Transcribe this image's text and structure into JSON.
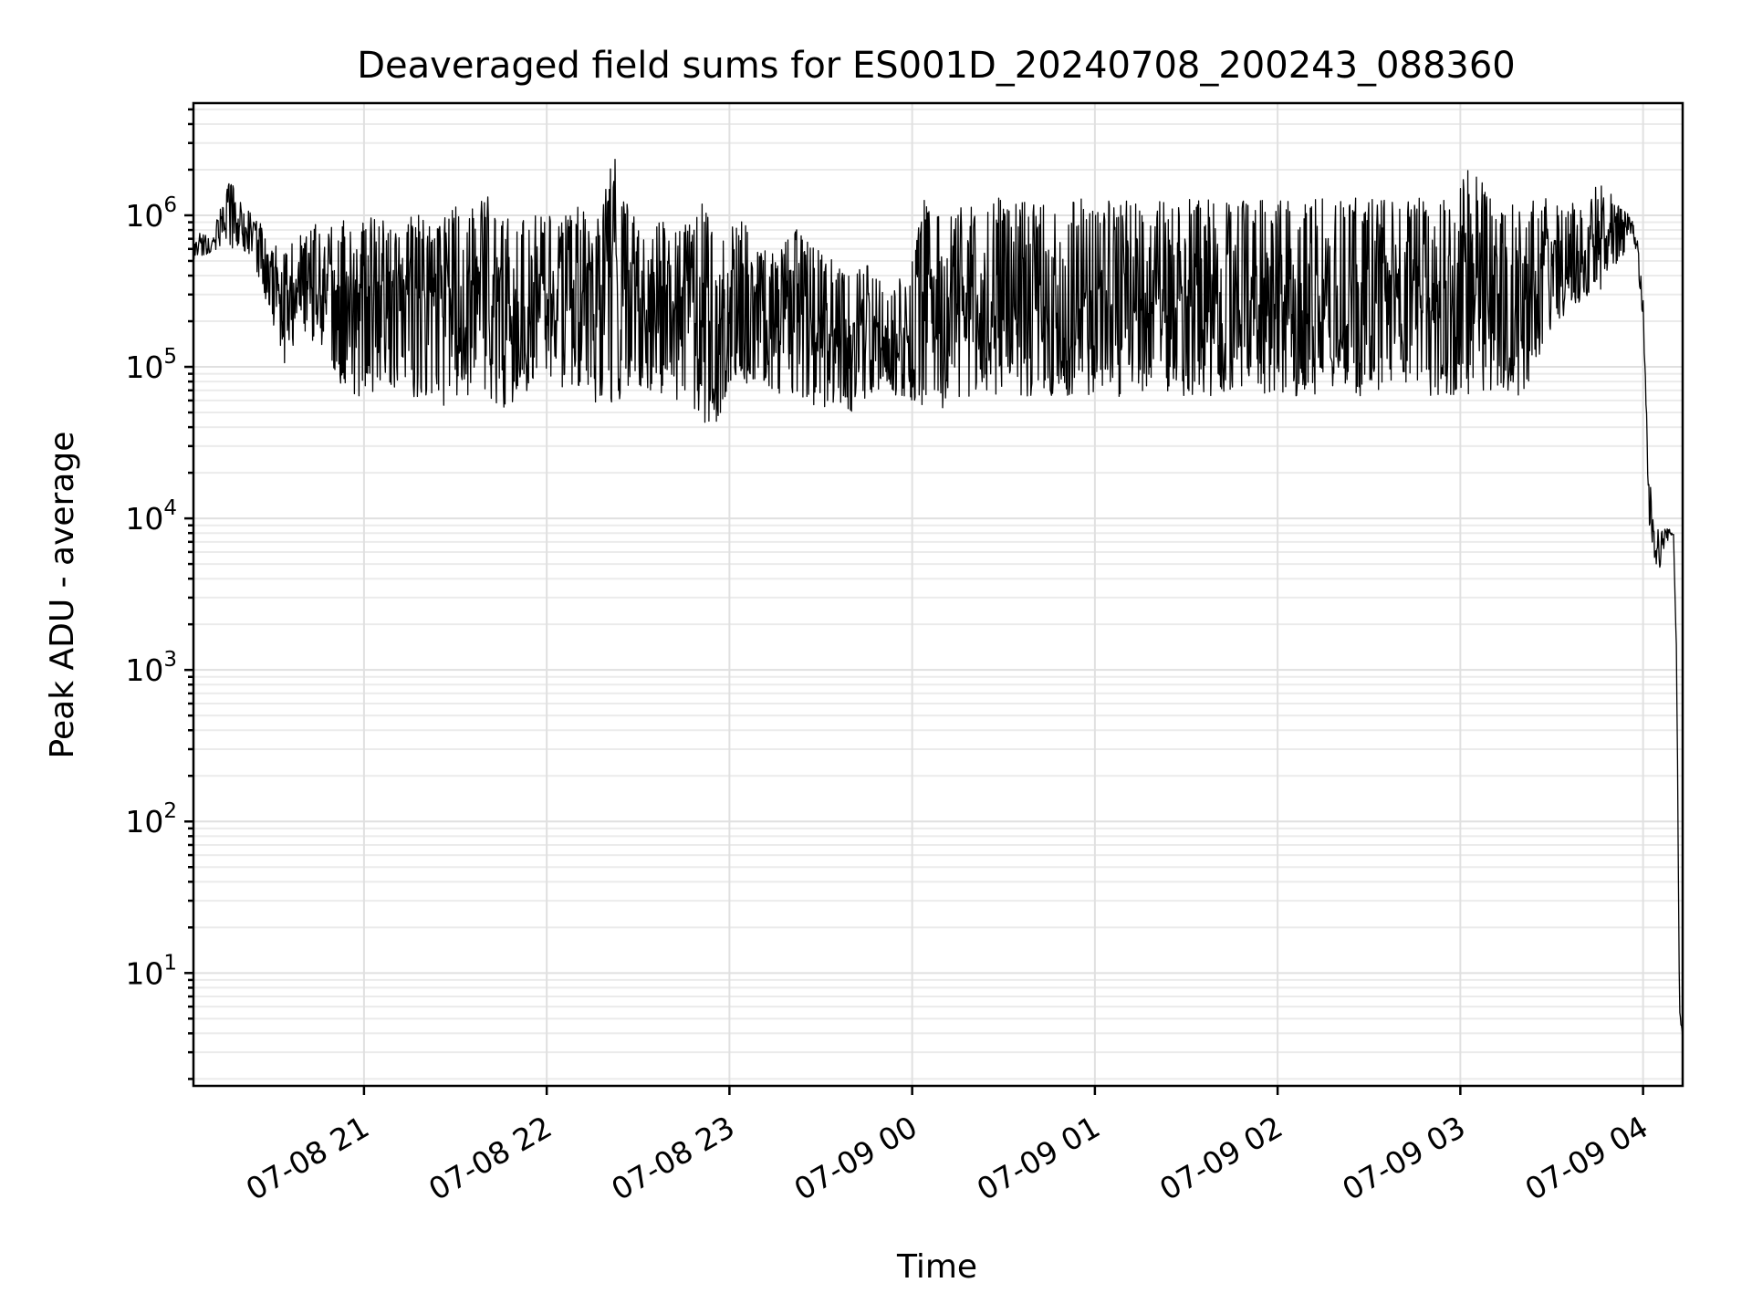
{
  "chart_data": {
    "type": "line",
    "title": "Deaveraged field sums for ES001D_20240708_200243_088360",
    "xlabel": "Time",
    "ylabel": "Peak ADU - average",
    "y_scale": "log",
    "x_range": [
      "07-08 20:04",
      "07-09 04:13"
    ],
    "y_range": [
      1.8,
      5500000
    ],
    "grid": true,
    "legend": "none",
    "line_color": "#000000",
    "x_ticks": [
      "07-08 21",
      "07-08 22",
      "07-08 23",
      "07-09 00",
      "07-09 01",
      "07-09 02",
      "07-09 03",
      "07-09 04"
    ],
    "y_ticks": [
      {
        "base": "10",
        "exp": "1",
        "value": 10
      },
      {
        "base": "10",
        "exp": "2",
        "value": 100
      },
      {
        "base": "10",
        "exp": "3",
        "value": 1000
      },
      {
        "base": "10",
        "exp": "4",
        "value": 10000
      },
      {
        "base": "10",
        "exp": "5",
        "value": 100000
      },
      {
        "base": "10",
        "exp": "6",
        "value": 1000000
      }
    ],
    "series": [
      {
        "x": [
          "07-08 20:04",
          "07-08 20:10",
          "07-08 20:16",
          "07-08 20:22",
          "07-08 20:28",
          "07-08 20:34",
          "07-08 20:40",
          "07-08 20:46",
          "07-08 20:52",
          "07-08 20:58",
          "07-08 21:04",
          "07-08 21:10",
          "07-08 21:16",
          "07-08 21:22",
          "07-08 21:28",
          "07-08 21:34",
          "07-08 21:40",
          "07-08 21:46",
          "07-08 21:52",
          "07-08 21:58",
          "07-08 22:04",
          "07-08 22:10",
          "07-08 22:16",
          "07-08 22:22",
          "07-08 22:28",
          "07-08 22:34",
          "07-08 22:40",
          "07-08 22:46",
          "07-08 22:52",
          "07-08 22:58",
          "07-08 23:04",
          "07-08 23:10",
          "07-08 23:16",
          "07-08 23:22",
          "07-08 23:28",
          "07-08 23:34",
          "07-08 23:40",
          "07-08 23:46",
          "07-08 23:52",
          "07-08 23:58",
          "07-09 00:04",
          "07-09 00:10",
          "07-09 00:16",
          "07-09 00:22",
          "07-09 00:28",
          "07-09 00:34",
          "07-09 00:40",
          "07-09 00:46",
          "07-09 00:52",
          "07-09 00:58",
          "07-09 01:04",
          "07-09 01:10",
          "07-09 01:16",
          "07-09 01:22",
          "07-09 01:28",
          "07-09 01:34",
          "07-09 01:40",
          "07-09 01:46",
          "07-09 01:52",
          "07-09 01:58",
          "07-09 02:04",
          "07-09 02:10",
          "07-09 02:16",
          "07-09 02:22",
          "07-09 02:28",
          "07-09 02:34",
          "07-09 02:40",
          "07-09 02:46",
          "07-09 02:52",
          "07-09 02:58",
          "07-09 03:04",
          "07-09 03:10",
          "07-09 03:16",
          "07-09 03:22",
          "07-09 03:28",
          "07-09 03:34",
          "07-09 03:40",
          "07-09 03:46",
          "07-09 03:52",
          "07-09 03:56",
          "07-09 03:58",
          "07-09 04:00",
          "07-09 04:02",
          "07-09 04:05",
          "07-09 04:07",
          "07-09 04:09",
          "07-09 04:10",
          "07-09 04:11",
          "07-09 04:12",
          "07-09 04:13"
        ],
        "y_high": [
          800000,
          750000,
          1700000,
          1100000,
          800000,
          700000,
          750000,
          1000000,
          950000,
          1100000,
          1000000,
          900000,
          1100000,
          850000,
          1300000,
          1100000,
          1400000,
          1000000,
          950000,
          1100000,
          900000,
          1200000,
          900000,
          2700000,
          1000000,
          900000,
          1000000,
          900000,
          1300000,
          800000,
          950000,
          700000,
          600000,
          900000,
          650000,
          500000,
          400000,
          500000,
          300000,
          450000,
          1300000,
          1200000,
          1300000,
          1300000,
          1300000,
          1300000,
          1250000,
          1250000,
          1300000,
          1300000,
          1250000,
          1300000,
          1300000,
          1300000,
          1300000,
          1300000,
          1250000,
          1300000,
          1250000,
          1300000,
          1250000,
          1250000,
          1300000,
          1300000,
          1300000,
          1300000,
          1300000,
          1300000,
          1300000,
          1300000,
          2300000,
          1300000,
          1300000,
          1300000,
          1300000,
          1250000,
          1200000,
          1700000,
          1250000,
          1000000,
          800000,
          300000,
          20000,
          9000,
          9000,
          8500,
          8000,
          1500,
          6,
          4
        ],
        "y_low": [
          500000,
          560000,
          600000,
          550000,
          260000,
          100000,
          160000,
          120000,
          70000,
          60000,
          60000,
          70000,
          60000,
          55000,
          50000,
          60000,
          60000,
          50000,
          60000,
          80000,
          70000,
          60000,
          55000,
          45000,
          80000,
          60000,
          60000,
          50000,
          40000,
          40000,
          70000,
          80000,
          60000,
          60000,
          50000,
          50000,
          45000,
          60000,
          60000,
          60000,
          50000,
          50000,
          60000,
          60000,
          60000,
          60000,
          60000,
          60000,
          60000,
          60000,
          60000,
          60000,
          60000,
          60000,
          60000,
          60000,
          60000,
          60000,
          60000,
          60000,
          60000,
          60000,
          60000,
          60000,
          60000,
          60000,
          60000,
          60000,
          60000,
          60000,
          60000,
          60000,
          60000,
          60000,
          150000,
          200000,
          250000,
          300000,
          500000,
          600000,
          400000,
          100000,
          3700,
          2200,
          5000,
          7000,
          7500,
          800,
          4,
          3.8
        ]
      }
    ]
  }
}
